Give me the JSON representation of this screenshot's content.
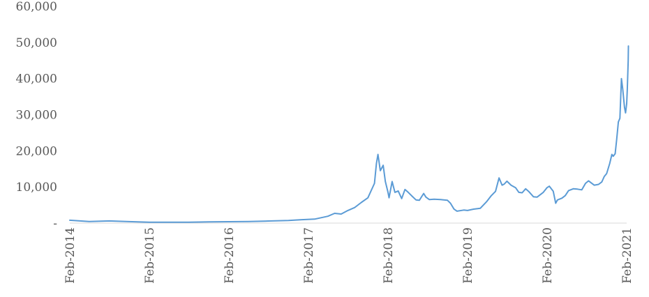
{
  "chart_data": {
    "type": "line",
    "title": "",
    "xlabel": "",
    "ylabel": "",
    "ylim": [
      0,
      60000
    ],
    "xlim": [
      "2014-02-01",
      "2021-02-01"
    ],
    "grid": false,
    "legend": "none",
    "y_ticks": [
      {
        "value": 0,
        "label": "-"
      },
      {
        "value": 10000,
        "label": "10,000"
      },
      {
        "value": 20000,
        "label": "20,000"
      },
      {
        "value": 30000,
        "label": "30,000"
      },
      {
        "value": 40000,
        "label": "40,000"
      },
      {
        "value": 50000,
        "label": "50,000"
      },
      {
        "value": 60000,
        "label": "60,000"
      }
    ],
    "x_ticks": [
      {
        "value": "2014-02-01",
        "label": "Feb-2014"
      },
      {
        "value": "2015-02-01",
        "label": "Feb-2015"
      },
      {
        "value": "2016-02-01",
        "label": "Feb-2016"
      },
      {
        "value": "2017-02-01",
        "label": "Feb-2017"
      },
      {
        "value": "2018-02-01",
        "label": "Feb-2018"
      },
      {
        "value": "2019-02-01",
        "label": "Feb-2019"
      },
      {
        "value": "2020-02-01",
        "label": "Feb-2020"
      },
      {
        "value": "2021-02-01",
        "label": "Feb-2021"
      }
    ],
    "series": [
      {
        "color": "#5b9bd5",
        "x": [
          "2014-02-01",
          "2014-05-01",
          "2014-08-01",
          "2014-11-01",
          "2015-02-01",
          "2015-05-01",
          "2015-08-01",
          "2015-11-01",
          "2016-02-01",
          "2016-05-01",
          "2016-08-01",
          "2016-11-01",
          "2017-01-01",
          "2017-03-01",
          "2017-05-01",
          "2017-06-01",
          "2017-07-01",
          "2017-08-01",
          "2017-09-01",
          "2017-10-01",
          "2017-11-01",
          "2017-12-01",
          "2017-12-10",
          "2017-12-17",
          "2017-12-28",
          "2018-01-10",
          "2018-01-20",
          "2018-02-01",
          "2018-02-06",
          "2018-02-20",
          "2018-03-05",
          "2018-03-20",
          "2018-04-05",
          "2018-04-20",
          "2018-05-05",
          "2018-05-20",
          "2018-06-10",
          "2018-06-25",
          "2018-07-15",
          "2018-07-25",
          "2018-08-10",
          "2018-09-01",
          "2018-10-01",
          "2018-11-01",
          "2018-11-15",
          "2018-12-01",
          "2018-12-15",
          "2019-01-15",
          "2019-02-01",
          "2019-03-01",
          "2019-04-01",
          "2019-05-01",
          "2019-05-20",
          "2019-06-10",
          "2019-06-26",
          "2019-07-10",
          "2019-07-20",
          "2019-08-01",
          "2019-08-20",
          "2019-09-10",
          "2019-09-25",
          "2019-10-10",
          "2019-10-26",
          "2019-11-10",
          "2019-12-01",
          "2019-12-18",
          "2020-01-15",
          "2020-02-01",
          "2020-02-12",
          "2020-03-01",
          "2020-03-12",
          "2020-03-20",
          "2020-04-10",
          "2020-04-25",
          "2020-05-10",
          "2020-06-01",
          "2020-06-20",
          "2020-07-10",
          "2020-07-27",
          "2020-08-10",
          "2020-09-05",
          "2020-09-25",
          "2020-10-10",
          "2020-10-21",
          "2020-11-01",
          "2020-11-15",
          "2020-11-25",
          "2020-12-01",
          "2020-12-10",
          "2020-12-17",
          "2020-12-25",
          "2021-01-01",
          "2021-01-08",
          "2021-01-14",
          "2021-01-22",
          "2021-01-27",
          "2021-02-01",
          "2021-02-04",
          "2021-02-08",
          "2021-02-09"
        ],
        "values": [
          800,
          450,
          600,
          400,
          250,
          240,
          230,
          350,
          380,
          450,
          580,
          720,
          950,
          1100,
          1900,
          2700,
          2500,
          3500,
          4300,
          5700,
          7000,
          11000,
          16500,
          19000,
          14500,
          16000,
          11500,
          8500,
          7000,
          11500,
          8500,
          8900,
          6800,
          9300,
          8500,
          7600,
          6400,
          6300,
          8200,
          7200,
          6500,
          6600,
          6500,
          6300,
          5500,
          3900,
          3300,
          3600,
          3500,
          3850,
          4100,
          6000,
          7500,
          8800,
          12500,
          10500,
          10800,
          11600,
          10500,
          9800,
          8500,
          8400,
          9500,
          8700,
          7300,
          7200,
          8500,
          9800,
          10200,
          8800,
          5500,
          6400,
          6900,
          7600,
          9000,
          9500,
          9400,
          9200,
          11000,
          11700,
          10500,
          10700,
          11400,
          12900,
          13700,
          16500,
          19000,
          18500,
          19200,
          23000,
          28000,
          29000,
          40000,
          37000,
          32000,
          30500,
          33000,
          37000,
          45000,
          49000
        ]
      }
    ]
  }
}
